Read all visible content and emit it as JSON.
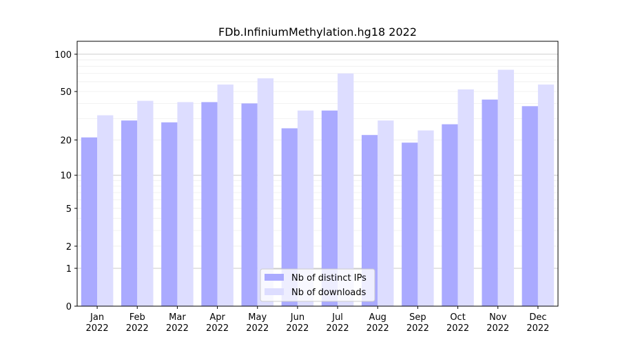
{
  "chart_data": {
    "type": "bar",
    "title": "FDb.InfiniumMethylation.hg18 2022",
    "xlabel": "",
    "ylabel": "",
    "yscale": "log(1+y)",
    "ylim": [
      0,
      120
    ],
    "yticks": [
      0,
      1,
      2,
      5,
      10,
      20,
      50,
      100
    ],
    "grid": true,
    "legend_position": "bottom-center",
    "categories": [
      "Jan\n2022",
      "Feb\n2022",
      "Mar\n2022",
      "Apr\n2022",
      "May\n2022",
      "Jun\n2022",
      "Jul\n2022",
      "Aug\n2022",
      "Sep\n2022",
      "Oct\n2022",
      "Nov\n2022",
      "Dec\n2022"
    ],
    "series": [
      {
        "name": "Nb of distinct IPs",
        "color": "#aaaaff",
        "values": [
          21,
          29,
          28,
          41,
          40,
          25,
          35,
          22,
          19,
          27,
          43,
          38
        ]
      },
      {
        "name": "Nb of downloads",
        "color": "#ddddff",
        "values": [
          32,
          42,
          41,
          57,
          64,
          35,
          70,
          29,
          24,
          52,
          75,
          57
        ]
      }
    ]
  }
}
